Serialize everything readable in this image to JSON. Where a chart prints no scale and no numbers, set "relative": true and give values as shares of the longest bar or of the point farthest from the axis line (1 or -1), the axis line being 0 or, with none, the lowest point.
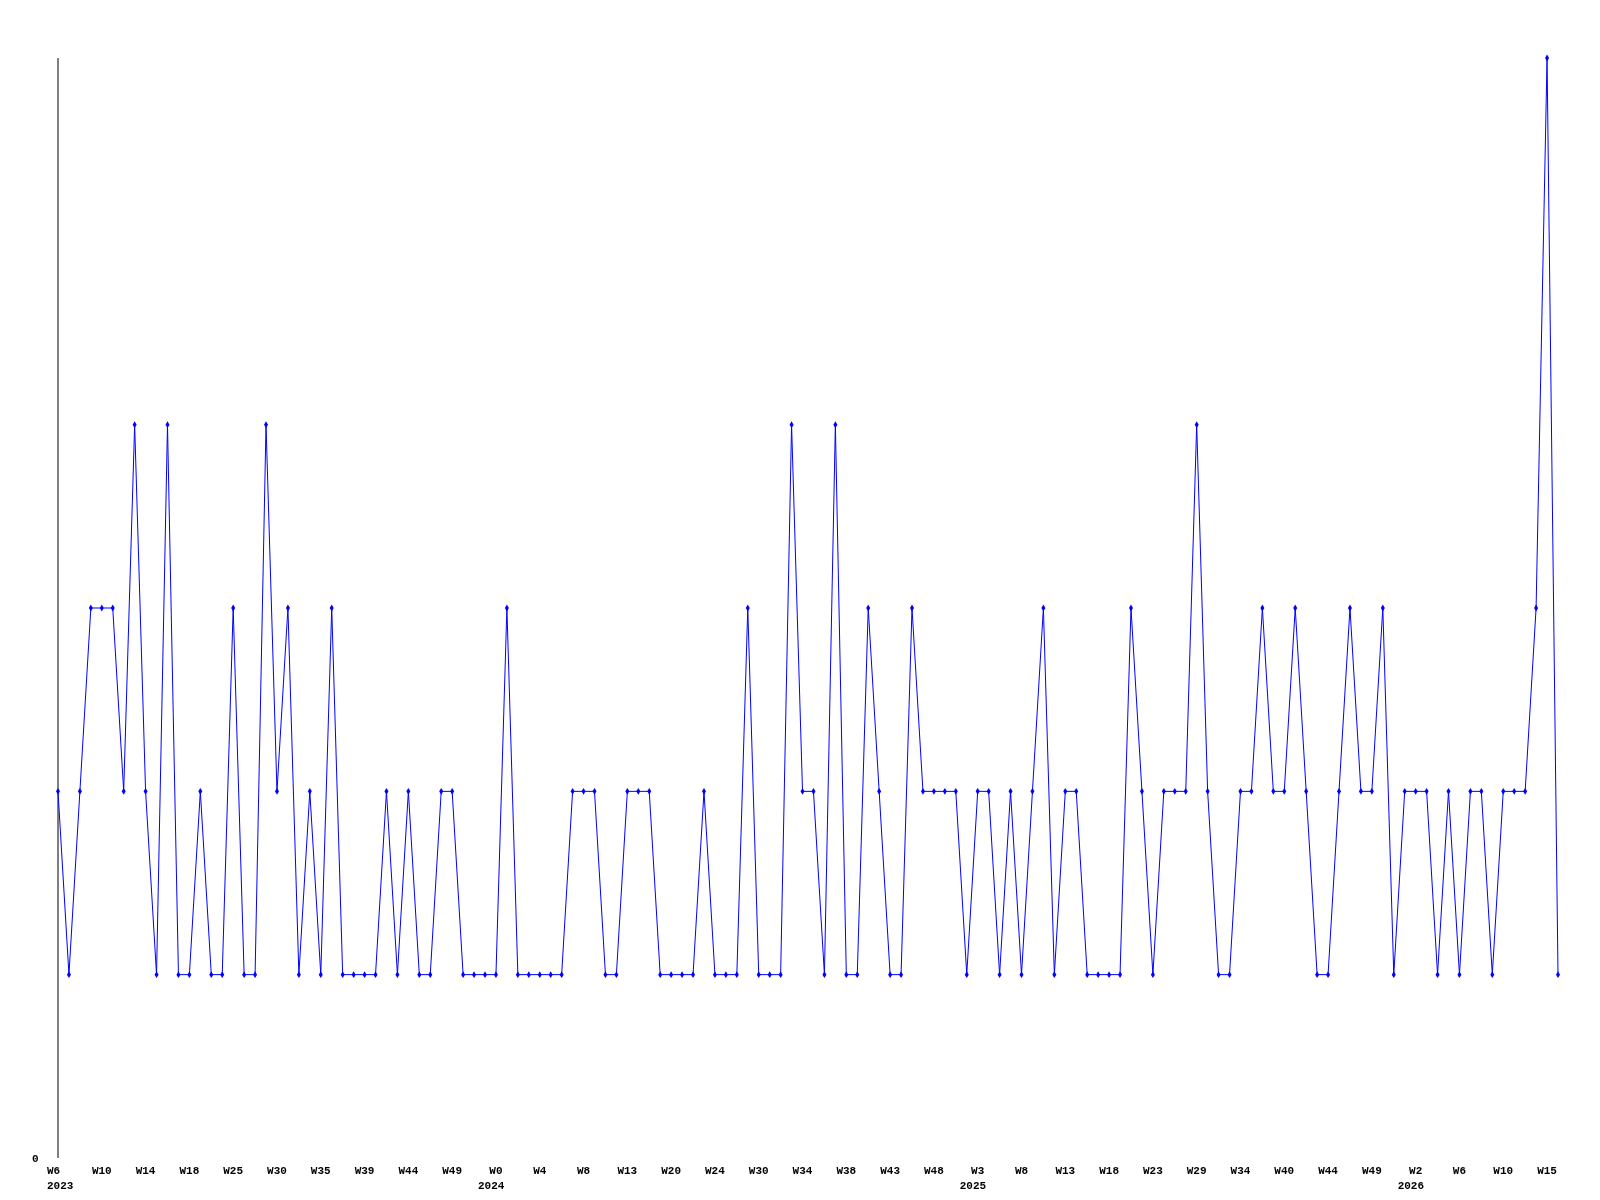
{
  "chart_data": {
    "type": "line",
    "relative": true,
    "marker": "diamond",
    "annotations": [
      "0"
    ],
    "categories": [
      "W6\n2023",
      null,
      null,
      null,
      "W10",
      null,
      null,
      null,
      "W14",
      null,
      null,
      null,
      "W18",
      null,
      null,
      null,
      "W25",
      null,
      null,
      null,
      "W30",
      null,
      null,
      null,
      "W35",
      null,
      null,
      null,
      "W39",
      null,
      null,
      null,
      "W44",
      null,
      null,
      null,
      "W49",
      null,
      null,
      null,
      "W0\n2024",
      null,
      null,
      null,
      "W4",
      null,
      null,
      null,
      "W8",
      null,
      null,
      null,
      "W13",
      null,
      null,
      null,
      "W20",
      null,
      null,
      null,
      "W24",
      null,
      null,
      null,
      "W30",
      null,
      null,
      null,
      "W34",
      null,
      null,
      null,
      "W38",
      null,
      null,
      null,
      "W43",
      null,
      null,
      null,
      "W48",
      null,
      null,
      null,
      "W3\n2025",
      null,
      null,
      null,
      "W8",
      null,
      null,
      null,
      "W13",
      null,
      null,
      null,
      "W18",
      null,
      null,
      null,
      "W23",
      null,
      null,
      null,
      "W29",
      null,
      null,
      null,
      "W34",
      null,
      null,
      null,
      "W40",
      null,
      null,
      null,
      "W44",
      null,
      null,
      null,
      "W49",
      null,
      null,
      null,
      "W2\n2026",
      null,
      null,
      null,
      "W6",
      null,
      null,
      null,
      "W10",
      null,
      null,
      null,
      "W15",
      null
    ],
    "series": [
      {
        "color": "#0000ff",
        "values": [
          0.3333,
          0.1667,
          0.3333,
          0.5,
          0.5,
          0.5,
          0.3333,
          0.6667,
          0.3333,
          0.1667,
          0.6667,
          0.1667,
          0.1667,
          0.3333,
          0.1667,
          0.1667,
          0.5,
          0.1667,
          0.1667,
          0.6667,
          0.3333,
          0.5,
          0.1667,
          0.3333,
          0.1667,
          0.5,
          0.1667,
          0.1667,
          0.1667,
          0.1667,
          0.3333,
          0.1667,
          0.3333,
          0.1667,
          0.1667,
          0.3333,
          0.3333,
          0.1667,
          0.1667,
          0.1667,
          0.1667,
          0.5,
          0.1667,
          0.1667,
          0.1667,
          0.1667,
          0.1667,
          0.3333,
          0.3333,
          0.3333,
          0.1667,
          0.1667,
          0.3333,
          0.3333,
          0.3333,
          0.1667,
          0.1667,
          0.1667,
          0.1667,
          0.3333,
          0.1667,
          0.1667,
          0.1667,
          0.5,
          0.1667,
          0.1667,
          0.1667,
          0.6667,
          0.3333,
          0.3333,
          0.1667,
          0.6667,
          0.1667,
          0.1667,
          0.5,
          0.3333,
          0.1667,
          0.1667,
          0.5,
          0.3333,
          0.3333,
          0.3333,
          0.3333,
          0.1667,
          0.3333,
          0.3333,
          0.1667,
          0.3333,
          0.1667,
          0.3333,
          0.5,
          0.1667,
          0.3333,
          0.3333,
          0.1667,
          0.1667,
          0.1667,
          0.1667,
          0.5,
          0.3333,
          0.1667,
          0.3333,
          0.3333,
          0.3333,
          0.6667,
          0.3333,
          0.1667,
          0.1667,
          0.3333,
          0.3333,
          0.5,
          0.3333,
          0.3333,
          0.5,
          0.3333,
          0.1667,
          0.1667,
          0.3333,
          0.5,
          0.3333,
          0.3333,
          0.5,
          0.1667,
          0.3333,
          0.3333,
          0.3333,
          0.1667,
          0.3333,
          0.1667,
          0.3333,
          0.3333,
          0.1667,
          0.3333,
          0.3333,
          0.3333,
          0.5,
          1,
          0.1667
        ]
      }
    ]
  }
}
